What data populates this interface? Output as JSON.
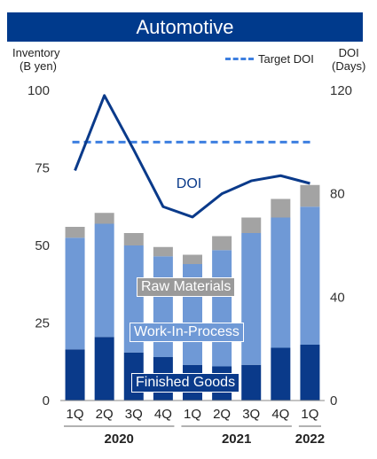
{
  "title": "Automotive",
  "left_axis": {
    "label_line1": "Inventory",
    "label_line2": "(B yen)"
  },
  "right_axis": {
    "label_line1": "DOI",
    "label_line2": "(Days)"
  },
  "legend": {
    "target_label": "Target DOI"
  },
  "annotations": {
    "doi": "DOI",
    "raw_materials": "Raw Materials",
    "wip": "Work-In-Process",
    "finished_goods": "Finished Goods"
  },
  "colors": {
    "title_bg": "#003a8c",
    "finished_goods": "#0a3a8a",
    "wip": "#6f99d6",
    "raw_materials": "#a3a3a3",
    "doi_line": "#0a3a8a",
    "target_line": "#3d7fe0"
  },
  "chart_data": {
    "type": "bar",
    "stacked": true,
    "categories": [
      "1Q",
      "2Q",
      "3Q",
      "4Q",
      "1Q",
      "2Q",
      "3Q",
      "4Q",
      "1Q"
    ],
    "category_groups": [
      {
        "label": "2020",
        "start": 0,
        "end": 3
      },
      {
        "label": "2021",
        "start": 4,
        "end": 7
      },
      {
        "label": "2022",
        "start": 8,
        "end": 8
      }
    ],
    "series": [
      {
        "name": "Finished Goods",
        "values": [
          16.5,
          20.5,
          15.5,
          14,
          11.5,
          11,
          11.5,
          17,
          18
        ]
      },
      {
        "name": "Work-In-Process",
        "values": [
          36,
          36.5,
          34.5,
          32.5,
          32.5,
          37.5,
          42.5,
          42,
          44.5
        ]
      },
      {
        "name": "Raw Materials",
        "values": [
          3.5,
          3.5,
          4,
          3,
          3,
          4.5,
          5,
          6,
          7
        ]
      }
    ],
    "left_axis_ticks": [
      0,
      25,
      50,
      75,
      100
    ],
    "ylim_left": [
      0,
      100
    ],
    "right_axis_ticks": [
      0,
      40,
      80,
      120
    ],
    "ylim_right": [
      0,
      120
    ],
    "doi": {
      "name": "DOI",
      "axis": "right",
      "values": [
        89,
        118,
        97,
        75,
        71,
        80,
        85,
        87,
        84
      ]
    },
    "target_doi": {
      "name": "Target DOI",
      "axis": "right",
      "value": 100
    }
  }
}
